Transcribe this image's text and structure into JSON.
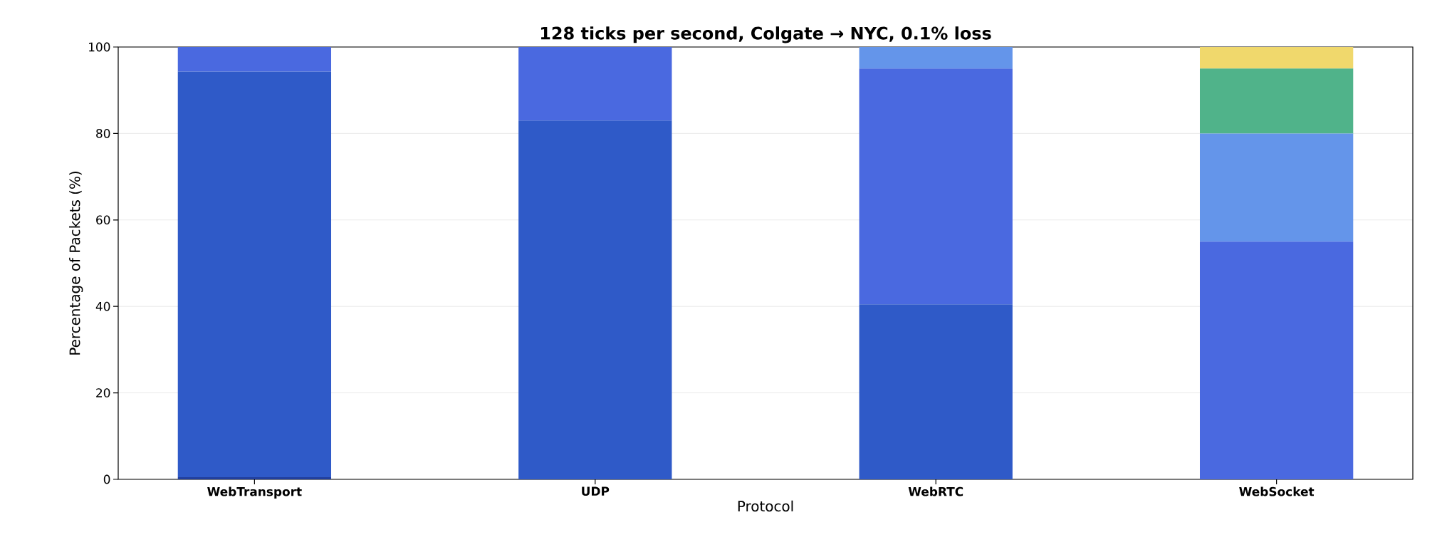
{
  "chart_data": {
    "type": "bar",
    "stacked": true,
    "title": "128 ticks per second, Colgate → NYC, 0.1% loss",
    "xlabel": "Protocol",
    "ylabel": "Percentage of Packets (%)",
    "categories": [
      "WebTransport",
      "UDP",
      "WebRTC",
      "WebSocket"
    ],
    "series": [
      {
        "color": "#213f9e",
        "values": [
          0.5,
          0,
          0,
          0
        ]
      },
      {
        "color": "#2f5ac8",
        "values": [
          93.8,
          83,
          40.5,
          0
        ]
      },
      {
        "color": "#4a69e0",
        "values": [
          5.7,
          17,
          54.5,
          55
        ]
      },
      {
        "color": "#6495ea",
        "values": [
          0,
          0,
          5,
          25
        ]
      },
      {
        "color": "#50b38a",
        "values": [
          0,
          0,
          0,
          15
        ]
      },
      {
        "color": "#f0d86c",
        "values": [
          0,
          0,
          0,
          5
        ]
      }
    ],
    "ylim": [
      0,
      100
    ],
    "yticks": [
      0,
      20,
      40,
      60,
      80,
      100
    ],
    "grid": "y"
  }
}
